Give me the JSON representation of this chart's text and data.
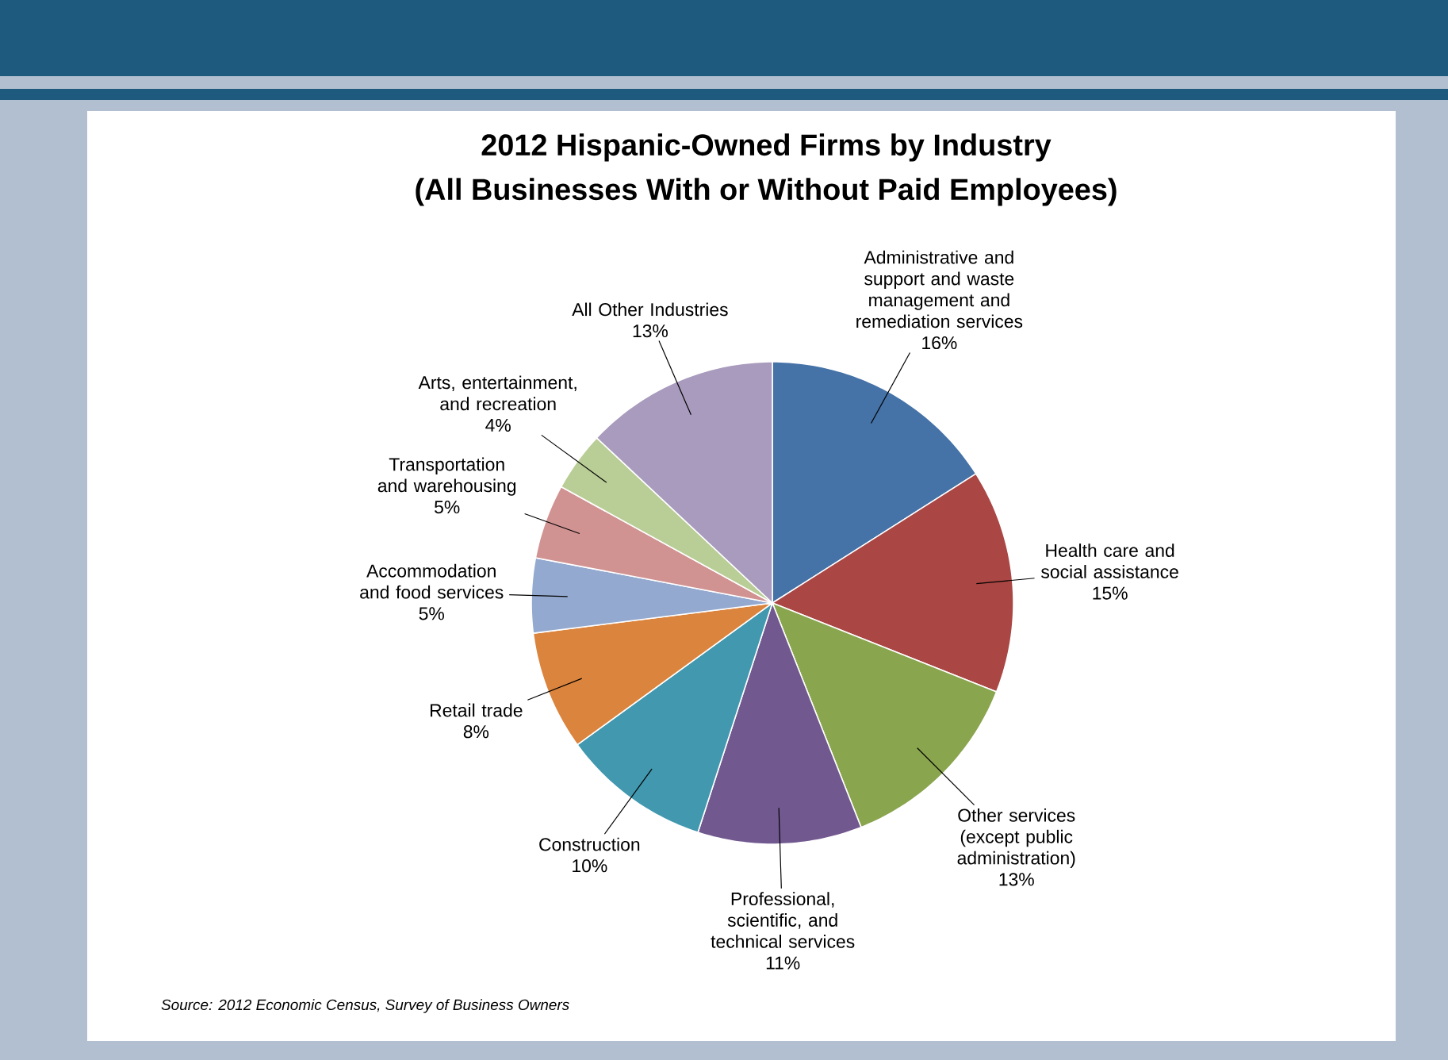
{
  "chart_data": {
    "type": "pie",
    "title": "2012 Hispanic-Owned Firms by Industry",
    "subtitle": "(All Businesses With or Without Paid Employees)",
    "categories": [
      "Administrative and support and waste management and remediation services",
      "Health care and social assistance",
      "Other services (except public administration)",
      "Professional, scientific, and technical services",
      "Construction",
      "Retail trade",
      "Accommodation and food services",
      "Transportation and warehousing",
      "Arts, entertainment, and recreation",
      "All Other Industries"
    ],
    "values": [
      16,
      15,
      13,
      11,
      10,
      8,
      5,
      5,
      4,
      13
    ],
    "value_labels": [
      "16%",
      "15%",
      "13%",
      "11%",
      "10%",
      "8%",
      "5%",
      "5%",
      "4%",
      "13%"
    ],
    "colors": [
      "#4572a7",
      "#aa4643",
      "#89a54e",
      "#71588f",
      "#4198af",
      "#db843d",
      "#93a9cf",
      "#d19392",
      "#b9cd96",
      "#a99bbd"
    ],
    "annotations": [
      "Source: 2012 Economic Census, Survey of Business Owners"
    ]
  }
}
